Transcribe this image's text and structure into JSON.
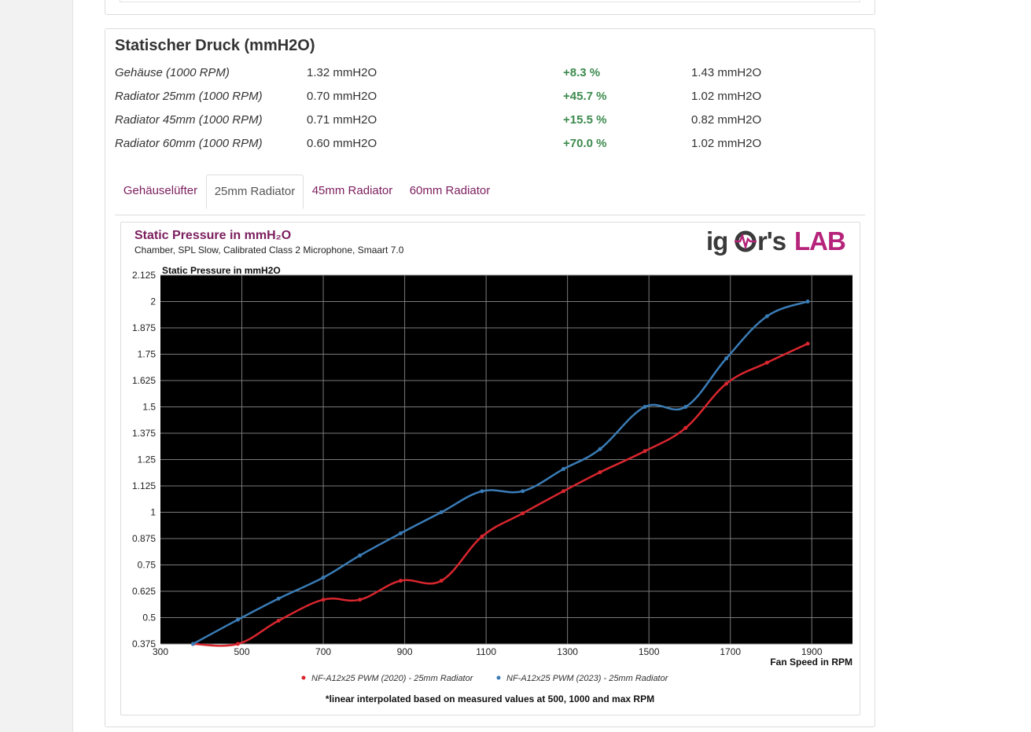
{
  "section": {
    "title": "Statischer Druck (mmH2O)",
    "rows": [
      {
        "label": "Gehäuse (1000 RPM)",
        "old": "1.32 mmH2O",
        "pct": "+8.3 %",
        "new": "1.43 mmH2O"
      },
      {
        "label": "Radiator 25mm (1000 RPM)",
        "old": "0.70 mmH2O",
        "pct": "+45.7 %",
        "new": "1.02 mmH2O"
      },
      {
        "label": "Radiator 45mm (1000 RPM)",
        "old": "0.71 mmH2O",
        "pct": "+15.5 %",
        "new": "0.82 mmH2O"
      },
      {
        "label": "Radiator 60mm (1000 RPM)",
        "old": "0.60 mmH2O",
        "pct": "+70.0 %",
        "new": "1.02 mmH2O"
      }
    ]
  },
  "tabs": [
    {
      "label": "Gehäuselüfter"
    },
    {
      "label": "25mm Radiator",
      "active": true
    },
    {
      "label": "45mm Radiator"
    },
    {
      "label": "60mm Radiator"
    }
  ],
  "chart_data": {
    "type": "line",
    "title": "Static Pressure in mmH₂O",
    "subtitle": "Chamber, SPL Slow, Calibrated Class 2 Microphone, Smaart 7.0",
    "logo": "igor'sLAB",
    "ylabel": "Static Pressure in mmH2O",
    "xlabel": "Fan Speed in RPM",
    "footnote": "*linear interpolated based on measured values at 500, 1000 and max RPM",
    "xlim": [
      300,
      2000
    ],
    "ylim": [
      0.375,
      2.125
    ],
    "xticks": [
      "300",
      "500",
      "700",
      "900",
      "1100",
      "1300",
      "1500",
      "1700",
      "1900"
    ],
    "yticks": [
      "2.125",
      "2",
      "1.875",
      "1.75",
      "1.625",
      "1.5",
      "1.375",
      "1.25",
      "1.125",
      "1",
      "0.875",
      "0.75",
      "0.625",
      "0.5",
      "0.375"
    ],
    "grid": true,
    "legend_position": "bottom",
    "background": "#000000",
    "series": [
      {
        "name": "NF-A12x25 PWM (2020) - 25mm Radiator",
        "color": "#d8262e",
        "x": [
          380,
          490,
          590,
          700,
          790,
          890,
          990,
          1090,
          1190,
          1290,
          1380,
          1490,
          1590,
          1690,
          1790,
          1890
        ],
        "y": [
          0.375,
          0.375,
          0.485,
          0.585,
          0.585,
          0.675,
          0.675,
          0.885,
          0.995,
          1.1,
          1.19,
          1.29,
          1.4,
          1.61,
          1.71,
          1.8
        ]
      },
      {
        "name": "NF-A12x25 PWM (2023) - 25mm Radiator",
        "color": "#3a7cb6",
        "x": [
          380,
          490,
          590,
          700,
          790,
          890,
          990,
          1090,
          1190,
          1290,
          1380,
          1490,
          1590,
          1690,
          1790,
          1890
        ],
        "y": [
          0.375,
          0.49,
          0.59,
          0.69,
          0.795,
          0.9,
          1.0,
          1.1,
          1.1,
          1.205,
          1.3,
          1.5,
          1.5,
          1.73,
          1.93,
          2.0
        ]
      }
    ]
  }
}
